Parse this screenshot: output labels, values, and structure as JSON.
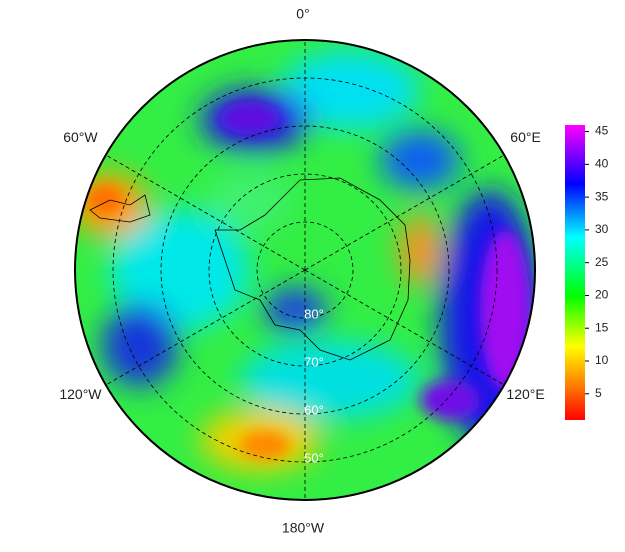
{
  "map": {
    "longitude_labels": [
      "0°",
      "60°E",
      "120°E",
      "180°W",
      "120°W",
      "60°W"
    ],
    "latitude_labels": [
      "80°",
      "70°",
      "60°",
      "50°"
    ],
    "colorbar": {
      "lim": [
        1,
        46
      ],
      "ticks": [
        5,
        10,
        15,
        20,
        25,
        30,
        35,
        40,
        45
      ]
    }
  }
}
